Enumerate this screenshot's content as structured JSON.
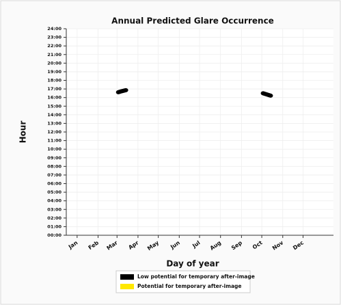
{
  "chart_data": {
    "type": "scatter",
    "title": "Annual Predicted Glare Occurrence",
    "xlabel": "Day of year",
    "ylabel": "Hour",
    "xlim": [
      -15,
      380
    ],
    "xticks": [
      {
        "value": 1,
        "label": "Jan"
      },
      {
        "value": 32,
        "label": "Feb"
      },
      {
        "value": 60,
        "label": "Mar"
      },
      {
        "value": 91,
        "label": "Apr"
      },
      {
        "value": 121,
        "label": "May"
      },
      {
        "value": 152,
        "label": "Jun"
      },
      {
        "value": 182,
        "label": "Jul"
      },
      {
        "value": 213,
        "label": "Aug"
      },
      {
        "value": 244,
        "label": "Sep"
      },
      {
        "value": 274,
        "label": "Oct"
      },
      {
        "value": 305,
        "label": "Nov"
      },
      {
        "value": 335,
        "label": "Dec"
      }
    ],
    "ylim": [
      0,
      24
    ],
    "yticks": [
      {
        "value": 0,
        "label": "00:00"
      },
      {
        "value": 1,
        "label": "01:00"
      },
      {
        "value": 2,
        "label": "02:00"
      },
      {
        "value": 3,
        "label": "03:00"
      },
      {
        "value": 4,
        "label": "04:00"
      },
      {
        "value": 5,
        "label": "05:00"
      },
      {
        "value": 6,
        "label": "06:00"
      },
      {
        "value": 7,
        "label": "07:00"
      },
      {
        "value": 8,
        "label": "08:00"
      },
      {
        "value": 9,
        "label": "09:00"
      },
      {
        "value": 10,
        "label": "10:00"
      },
      {
        "value": 11,
        "label": "11:00"
      },
      {
        "value": 12,
        "label": "12:00"
      },
      {
        "value": 13,
        "label": "13:00"
      },
      {
        "value": 14,
        "label": "14:00"
      },
      {
        "value": 15,
        "label": "15:00"
      },
      {
        "value": 16,
        "label": "16:00"
      },
      {
        "value": 17,
        "label": "17:00"
      },
      {
        "value": 18,
        "label": "18:00"
      },
      {
        "value": 19,
        "label": "19:00"
      },
      {
        "value": 20,
        "label": "20:00"
      },
      {
        "value": 21,
        "label": "21:00"
      },
      {
        "value": 22,
        "label": "22:00"
      },
      {
        "value": 23,
        "label": "23:00"
      },
      {
        "value": 24,
        "label": "24:00"
      }
    ],
    "grid": true,
    "legend": "bottom",
    "series": [
      {
        "name": "Low potential for temporary after-image",
        "color": "#000000",
        "x": [
          62,
          63,
          64,
          65,
          66,
          67,
          68,
          69,
          70,
          71,
          72,
          73,
          276,
          277,
          278,
          279,
          280,
          281,
          282,
          283,
          284,
          285,
          286,
          287
        ],
        "values": [
          16.62,
          16.65,
          16.67,
          16.7,
          16.72,
          16.74,
          16.76,
          16.78,
          16.8,
          16.82,
          16.84,
          16.86,
          16.5,
          16.47,
          16.45,
          16.42,
          16.4,
          16.37,
          16.35,
          16.32,
          16.3,
          16.27,
          16.25,
          16.22
        ]
      },
      {
        "name": "Potential for temporary after-image",
        "color": "#ffe800",
        "x": [],
        "values": []
      }
    ]
  }
}
